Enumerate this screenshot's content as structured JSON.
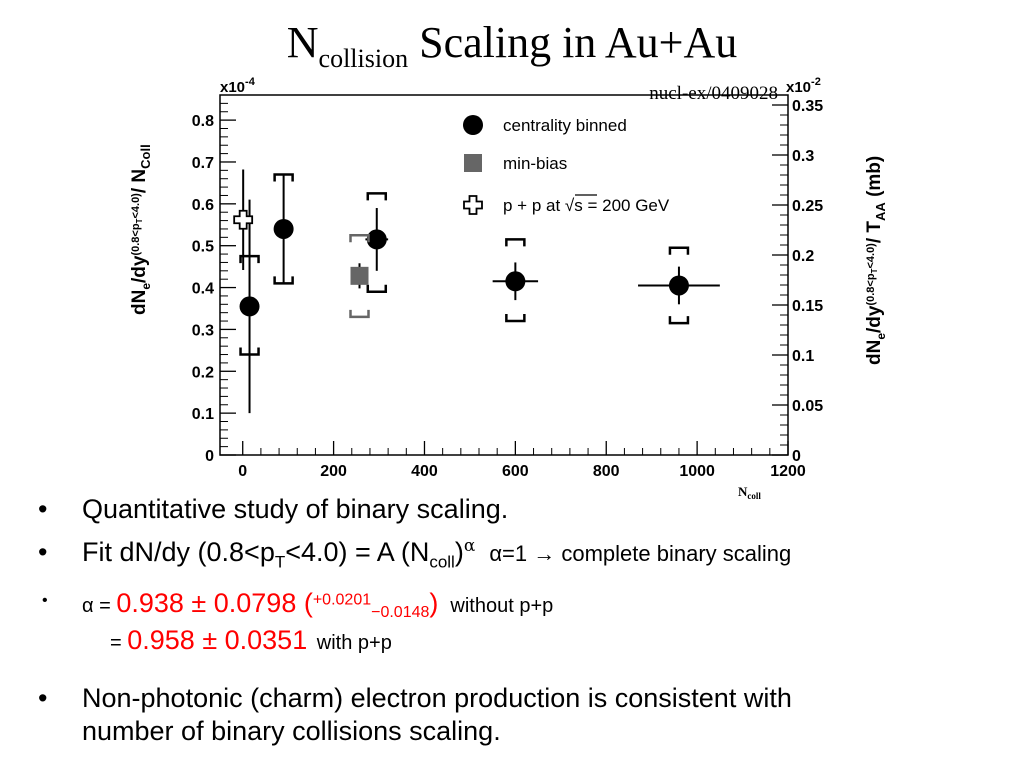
{
  "slide": {
    "title_main": "N",
    "title_sub": "collision",
    "title_rest": " Scaling in Au+Au",
    "reference": "nucl-ex/0409028"
  },
  "chart_data": {
    "type": "scatter",
    "xlabel": "N",
    "xlabel_sub": "coll",
    "xlim": [
      -50,
      1200
    ],
    "x_ticks": [
      0,
      200,
      400,
      600,
      800,
      1000,
      1200
    ],
    "ylabel_left": "dN_e/dy^(0.8<p_T<4.0) / N_Coll",
    "ylim_left": [
      0,
      0.86
    ],
    "y_ticks_left": [
      "0",
      "0.1",
      "0.2",
      "0.3",
      "0.4",
      "0.5",
      "0.6",
      "0.7",
      "0.8"
    ],
    "y_left_multiplier": "x10",
    "y_left_exp": "-4",
    "ylabel_right": "dN_e/dy^(0.8<p_T<4.0) / T_AA (mb)",
    "ylim_right": [
      0,
      0.36
    ],
    "y_ticks_right": [
      "0",
      "0.05",
      "0.1",
      "0.15",
      "0.2",
      "0.25",
      "0.3",
      "0.35"
    ],
    "y_right_multiplier": "x10",
    "y_right_exp": "-2",
    "legend_position": "top-right",
    "series": [
      {
        "name": "centrality binned",
        "marker": "circle",
        "color": "#000000",
        "points": [
          {
            "x": 15,
            "y": 0.355,
            "xerr": 0,
            "yerr": 0.255,
            "sys_lo": 0.24,
            "sys_hi": 0.475
          },
          {
            "x": 90,
            "y": 0.54,
            "xerr": 0,
            "yerr": 0.13,
            "sys_lo": 0.41,
            "sys_hi": 0.67
          },
          {
            "x": 295,
            "y": 0.515,
            "xerr": 25,
            "yerr": 0.075,
            "sys_lo": 0.39,
            "sys_hi": 0.625
          },
          {
            "x": 600,
            "y": 0.415,
            "xerr": 50,
            "yerr": 0.045,
            "sys_lo": 0.32,
            "sys_hi": 0.515
          },
          {
            "x": 960,
            "y": 0.405,
            "xerr": 90,
            "yerr": 0.045,
            "sys_lo": 0.315,
            "sys_hi": 0.495
          }
        ]
      },
      {
        "name": "min-bias",
        "marker": "square",
        "color": "#666666",
        "points": [
          {
            "x": 257,
            "y": 0.428,
            "xerr": 0,
            "yerr": 0.03,
            "sys_lo": 0.33,
            "sys_hi": 0.525
          }
        ]
      },
      {
        "name": "p + p at √s = 200 GeV",
        "marker": "open-cross",
        "color": "#000000",
        "points": [
          {
            "x": 1,
            "y": 0.562,
            "xerr": 0,
            "yerr": 0.12
          }
        ]
      }
    ]
  },
  "bullets": {
    "b1": "Quantitative study of binary scaling.",
    "b2_a": "Fit dN/dy (0.8<p",
    "b2_T": "T",
    "b2_b": "<4.0) = A (N",
    "b2_coll": "coll",
    "b2_c": ")",
    "b2_alpha": "α",
    "b2_d": "α=1 → complete binary scaling",
    "b3_a": "α = ",
    "b3_val": "0.938 ± 0.0798 (",
    "b3_up": "+0.0201",
    "b3_dn": "−0.0148",
    "b3_close": ")",
    "b3_b": "without p+p",
    "b4_a": "= ",
    "b4_val": "0.958 ± 0.0351",
    "b4_b": "with p+p",
    "b5_l1": "Non-photonic (charm) electron production is consistent with",
    "b5_l2": "number of binary collisions scaling.",
    "bullet_char": "•"
  }
}
